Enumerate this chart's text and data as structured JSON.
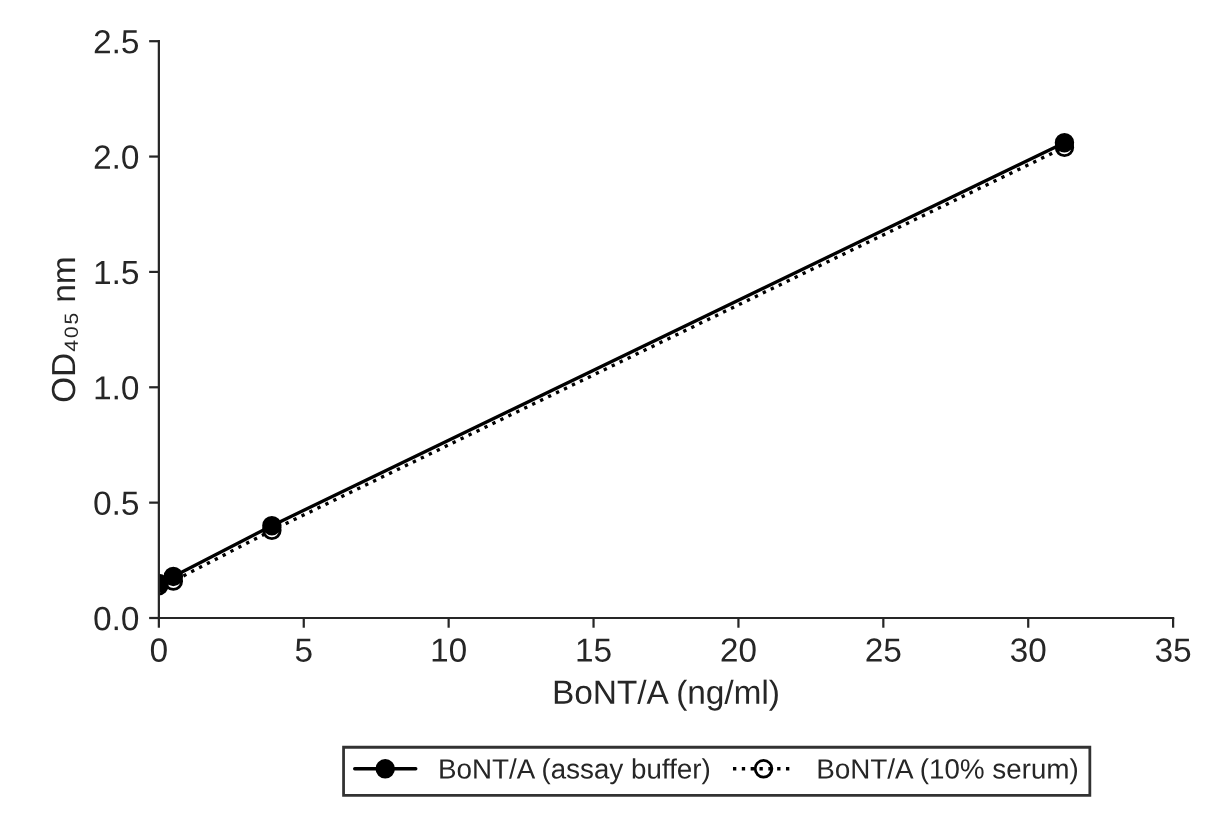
{
  "chart_data": {
    "type": "line",
    "xlabel": "BoNT/A (ng/ml)",
    "ylabel": "OD₄₀₅ nm",
    "xlim": [
      0,
      35
    ],
    "xticks": [
      0,
      5,
      10,
      15,
      20,
      25,
      30,
      35
    ],
    "ylim": [
      0,
      2.5
    ],
    "yticks": [
      {
        "value": 0,
        "label": "0.0"
      },
      0.5,
      {
        "value": 1,
        "label": "1.0"
      },
      1.5,
      {
        "value": 2,
        "label": "2.0"
      },
      2.5
    ],
    "grid": false,
    "legend": "bottom",
    "series": [
      {
        "name": "BoNT/A (assay buffer)",
        "color": "#000000",
        "marker": "circle",
        "line_style": "solid",
        "x": [
          0,
          0.5,
          3.9,
          31.25
        ],
        "values": [
          0.15,
          0.18,
          0.4,
          2.06
        ]
      },
      {
        "name": "BoNT/A (10% serum)",
        "color": "#000000",
        "marker": "circle",
        "line_style": "dotted",
        "x": [
          0,
          0.5,
          3.9,
          31.25
        ],
        "values": [
          0.14,
          0.16,
          0.38,
          2.04
        ]
      }
    ]
  }
}
